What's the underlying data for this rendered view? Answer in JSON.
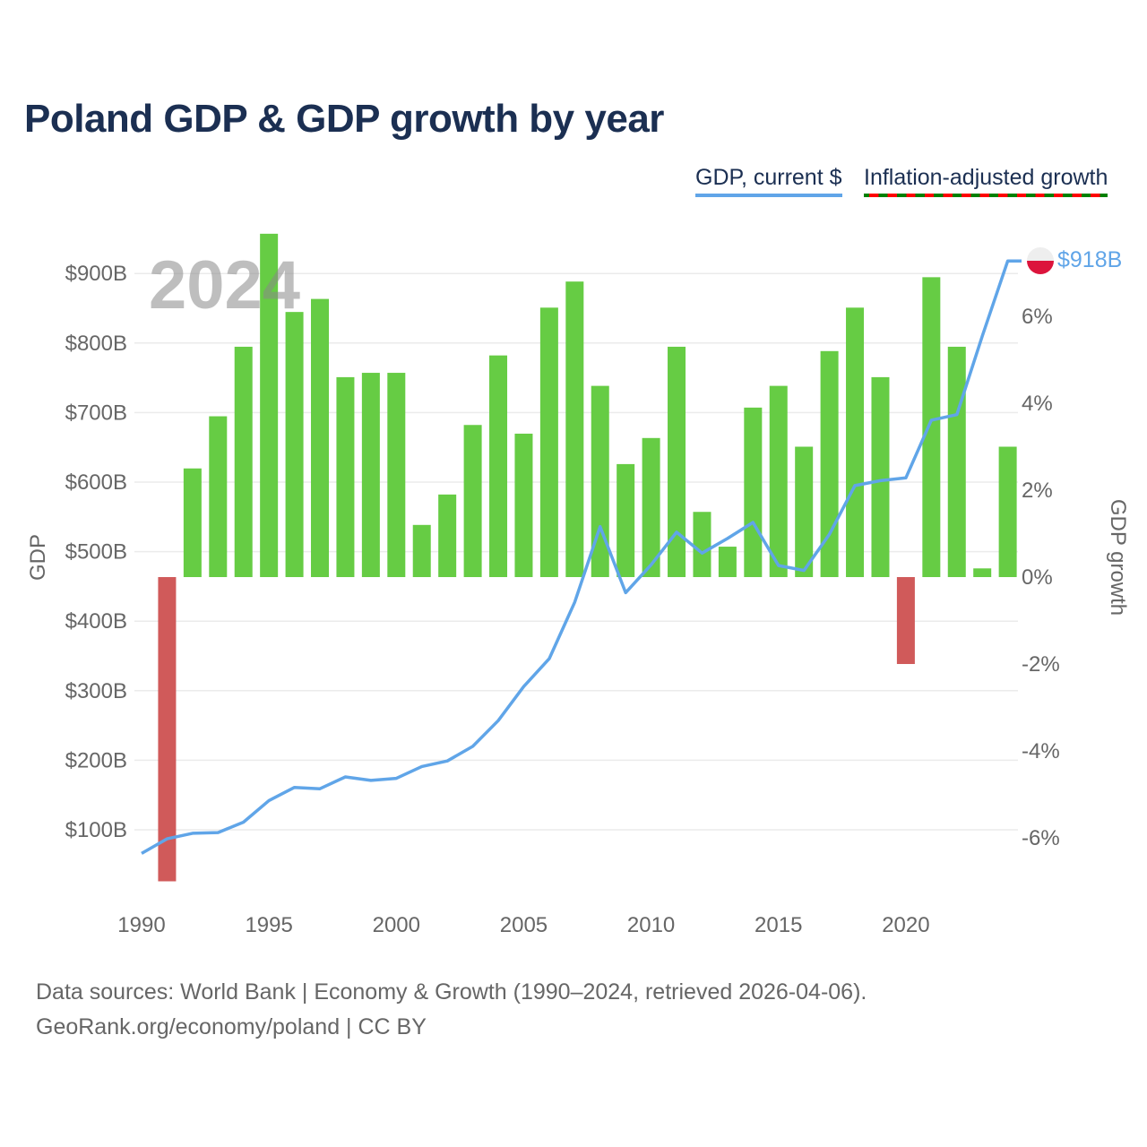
{
  "title": "Poland GDP & GDP growth by year",
  "legend": {
    "gdp": "GDP, current $",
    "growth": "Inflation-adjusted growth"
  },
  "footer": {
    "line1": "Data sources: World Bank | Economy & Growth (1990–2024, retrieved 2026-04-06).",
    "line2": "GeoRank.org/economy/poland | CC BY"
  },
  "watermark_year": "2024",
  "end_label": "$918B",
  "colors": {
    "gdp_line": "#60a5e8",
    "positive_bar": "#66cc44",
    "negative_bar": "#d05a5a",
    "title": "#1b2f52",
    "flag_red": "#dc143c",
    "flag_white": "#eeeeee"
  },
  "chart_data": {
    "type": "bar+line",
    "title": "Poland GDP & GDP growth by year",
    "xlabel": "",
    "ylabel_left": "GDP",
    "ylabel_right": "GDP growth",
    "x_ticks": [
      "1990",
      "1995",
      "2000",
      "2005",
      "2010",
      "2015",
      "2020"
    ],
    "left_ticks": [
      {
        "v": 100,
        "label": "$100B"
      },
      {
        "v": 200,
        "label": "$200B"
      },
      {
        "v": 300,
        "label": "$300B"
      },
      {
        "v": 400,
        "label": "$400B"
      },
      {
        "v": 500,
        "label": "$500B"
      },
      {
        "v": 600,
        "label": "$600B"
      },
      {
        "v": 700,
        "label": "$700B"
      },
      {
        "v": 800,
        "label": "$800B"
      },
      {
        "v": 900,
        "label": "$900B"
      }
    ],
    "right_ticks": [
      {
        "v": 6,
        "label": "6%"
      },
      {
        "v": 4,
        "label": "4%"
      },
      {
        "v": 2,
        "label": "2%"
      },
      {
        "v": 0,
        "label": "0%"
      },
      {
        "v": -2,
        "label": "-2%"
      },
      {
        "v": -4,
        "label": "-4%"
      },
      {
        "v": -6,
        "label": "-6%"
      }
    ],
    "years": [
      1990,
      1991,
      1992,
      1993,
      1994,
      1995,
      1996,
      1997,
      1998,
      1999,
      2000,
      2001,
      2002,
      2003,
      2004,
      2005,
      2006,
      2007,
      2008,
      2009,
      2010,
      2011,
      2012,
      2013,
      2014,
      2015,
      2016,
      2017,
      2018,
      2019,
      2020,
      2021,
      2022,
      2023,
      2024
    ],
    "series": [
      {
        "name": "GDP, current $ (billions)",
        "type": "line",
        "values": [
          66,
          87,
          95,
          96,
          111,
          142,
          161,
          159,
          176,
          171,
          174,
          191,
          199,
          220,
          257,
          306,
          346,
          427,
          536,
          441,
          481,
          528,
          498,
          519,
          542,
          480,
          473,
          525,
          595,
          602,
          606,
          689,
          697,
          810,
          918
        ]
      },
      {
        "name": "Inflation-adjusted growth (%)",
        "type": "bar",
        "values": [
          null,
          -7.0,
          2.5,
          3.7,
          5.3,
          7.9,
          6.1,
          6.4,
          4.6,
          4.7,
          4.7,
          1.2,
          1.9,
          3.5,
          5.1,
          3.3,
          6.2,
          6.8,
          4.4,
          2.6,
          3.2,
          5.3,
          1.5,
          0.7,
          3.9,
          4.4,
          3.0,
          5.2,
          6.2,
          4.6,
          -2.0,
          6.9,
          5.3,
          0.2,
          3.0
        ]
      }
    ],
    "ylim_left": [
      0,
      1000
    ],
    "ylim_right": [
      -7.5,
      7.5
    ],
    "grid": true
  }
}
